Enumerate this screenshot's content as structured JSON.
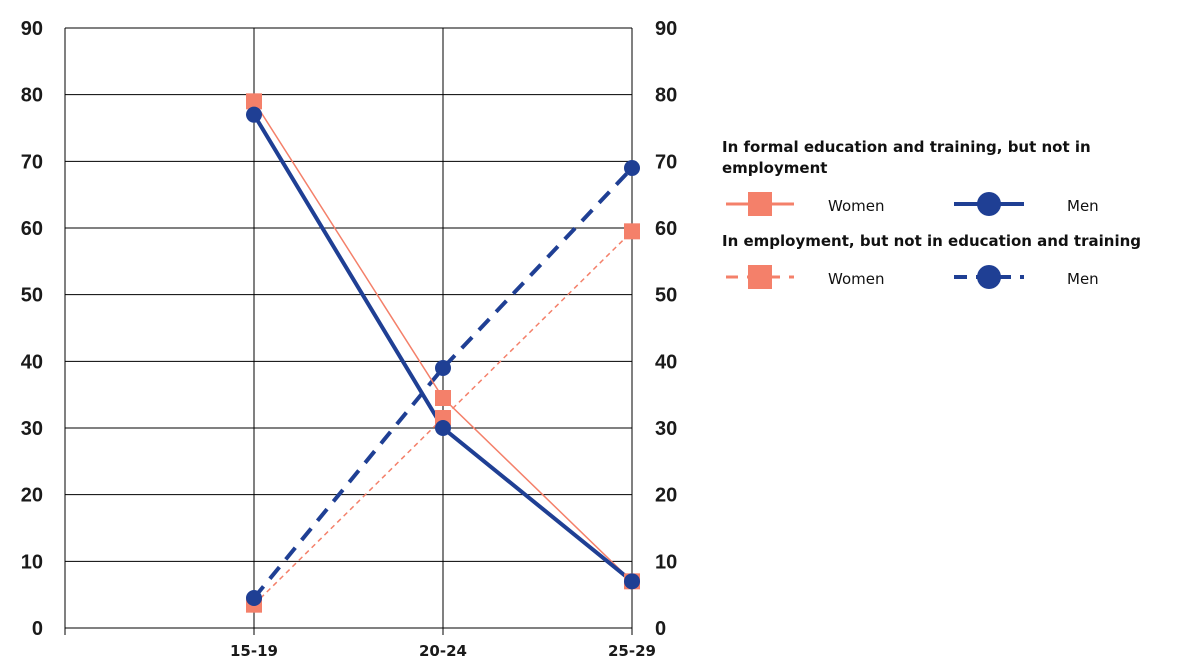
{
  "chart_data": {
    "type": "line",
    "categories": [
      "15-19",
      "20-24",
      "25-29"
    ],
    "ylim": [
      0,
      90
    ],
    "yticks": [
      0,
      10,
      20,
      30,
      40,
      50,
      60,
      70,
      80,
      90
    ],
    "grid": true,
    "legend_position": "right",
    "series": [
      {
        "group": "In formal education and training, but not in employment",
        "name": "Women",
        "values": [
          79,
          34.5,
          7
        ],
        "color": "#f4806a",
        "style": "solid",
        "marker": "square"
      },
      {
        "group": "In formal education and training, but not in employment",
        "name": "Men",
        "values": [
          77,
          30,
          7
        ],
        "color": "#1f3f94",
        "style": "solid",
        "marker": "circle"
      },
      {
        "group": "In employment, but not in education and training",
        "name": "Women",
        "values": [
          3.5,
          31.5,
          59.5
        ],
        "color": "#f4806a",
        "style": "dashed",
        "marker": "square"
      },
      {
        "group": "In employment, but not in education and training",
        "name": "Men",
        "values": [
          4.5,
          39,
          69
        ],
        "color": "#1f3f94",
        "style": "dashed",
        "marker": "circle"
      }
    ]
  },
  "legend": {
    "group1_title": "In formal education and training, but not in employment",
    "group2_title": "In employment, but not in education and training",
    "women_label": "Women",
    "men_label": "Men"
  }
}
